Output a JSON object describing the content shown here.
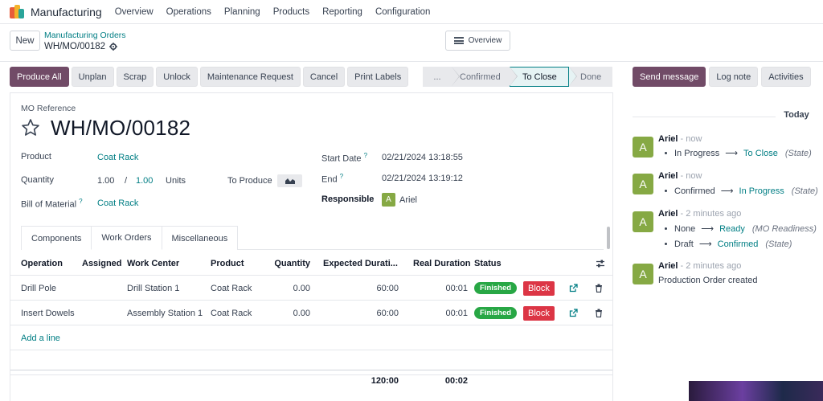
{
  "navbar": {
    "app_name": "Manufacturing",
    "menu": [
      "Overview",
      "Operations",
      "Planning",
      "Products",
      "Reporting",
      "Configuration"
    ]
  },
  "control_panel": {
    "new_label": "New",
    "breadcrumb_parent": "Manufacturing Orders",
    "breadcrumb_current": "WH/MO/00182",
    "overview_label": "Overview"
  },
  "actions": [
    "Produce All",
    "Unplan",
    "Scrap",
    "Unlock",
    "Maintenance Request",
    "Cancel",
    "Print Labels"
  ],
  "status": {
    "more": "...",
    "confirmed": "Confirmed",
    "to_close": "To Close",
    "done": "Done"
  },
  "form": {
    "mo_ref_label": "MO Reference",
    "mo_name": "WH/MO/00182",
    "product_label": "Product",
    "product_value": "Coat Rack",
    "quantity_label": "Quantity",
    "quantity_produced": "1.00",
    "quantity_sep": "/",
    "quantity_total": "1.00",
    "quantity_uom": "Units",
    "to_produce_label": "To Produce",
    "bom_label": "Bill of Material",
    "bom_help": "?",
    "bom_value": "Coat Rack",
    "start_label": "Start Date",
    "start_help": "?",
    "start_value": "02/21/2024 13:18:55",
    "end_label": "End",
    "end_help": "?",
    "end_value": "02/21/2024 13:19:12",
    "responsible_label": "Responsible",
    "responsible_initial": "A",
    "responsible_name": "Ariel"
  },
  "tabs": [
    "Components",
    "Work Orders",
    "Miscellaneous"
  ],
  "work_orders": {
    "columns": [
      "Operation",
      "Assigned",
      "Work Center",
      "Product",
      "Quantity",
      "Expected Durati...",
      "Real Duration",
      "Status"
    ],
    "rows": [
      {
        "operation": "Drill Pole",
        "assigned": "",
        "work_center": "Drill Station 1",
        "product": "Coat Rack",
        "quantity": "0.00",
        "expected": "60:00",
        "real": "00:01",
        "status": "Finished",
        "action": "Block"
      },
      {
        "operation": "Insert Dowels",
        "assigned": "",
        "work_center": "Assembly Station 1",
        "product": "Coat Rack",
        "quantity": "0.00",
        "expected": "60:00",
        "real": "00:01",
        "status": "Finished",
        "action": "Block"
      }
    ],
    "add_line": "Add a line",
    "total_expected": "120:00",
    "total_real": "00:02"
  },
  "chatter": {
    "send_message": "Send message",
    "log_note": "Log note",
    "activities": "Activities",
    "today": "Today",
    "messages": [
      {
        "initial": "A",
        "author": "Ariel",
        "time": "- now",
        "changes": [
          {
            "old": "In Progress",
            "new": "To Close",
            "field": "(State)"
          }
        ]
      },
      {
        "initial": "A",
        "author": "Ariel",
        "time": "- now",
        "changes": [
          {
            "old": "Confirmed",
            "new": "In Progress",
            "field": "(State)"
          }
        ]
      },
      {
        "initial": "A",
        "author": "Ariel",
        "time": "- 2 minutes ago",
        "changes": [
          {
            "old": "None",
            "new": "Ready",
            "field": "(MO Readiness)"
          },
          {
            "old": "Draft",
            "new": "Confirmed",
            "field": "(State)"
          }
        ]
      },
      {
        "initial": "A",
        "author": "Ariel",
        "time": "- 2 minutes ago",
        "body": "Production Order created"
      }
    ]
  },
  "colors": {
    "primary": "#714b67",
    "link": "#017e84",
    "finished": "#28a745",
    "block": "#dc3545",
    "avatar": "#86a944"
  }
}
